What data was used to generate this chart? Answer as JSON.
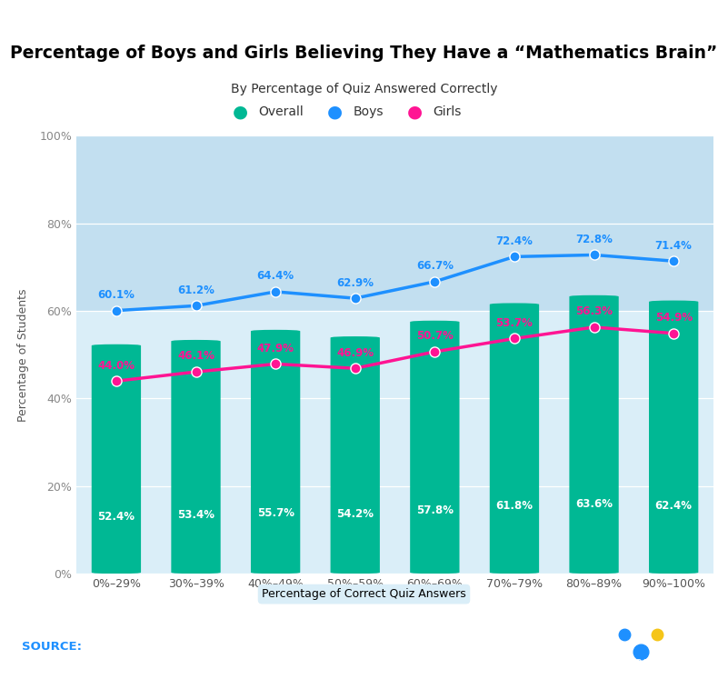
{
  "title": "Percentage of Boys and Girls Believing They Have a “Mathematics Brain”",
  "subtitle": "By Percentage of Quiz Answered Correctly",
  "xlabel": "Percentage of Correct Quiz Answers",
  "ylabel": "Percentage of Students",
  "categories": [
    "0%–29%",
    "30%–39%",
    "40%–49%",
    "50%–59%",
    "60%–69%",
    "70%–79%",
    "80%–89%",
    "90%–100%"
  ],
  "overall": [
    52.4,
    53.4,
    55.7,
    54.2,
    57.8,
    61.8,
    63.6,
    62.4
  ],
  "boys": [
    60.1,
    61.2,
    64.4,
    62.9,
    66.7,
    72.4,
    72.8,
    71.4
  ],
  "girls": [
    44.0,
    46.1,
    47.9,
    46.9,
    50.7,
    53.7,
    56.3,
    54.9
  ],
  "bar_color": "#00b894",
  "boys_color": "#1e90ff",
  "girls_color": "#ff1493",
  "overall_label_color": "#ffffff",
  "background_color": "#ffffff",
  "plot_bg_color": "#daeef8",
  "plot_bg_top_color": "#c2dff0",
  "footer_bg_color": "#0d2137",
  "footer_text_color": "#ffffff",
  "source_label_color": "#1e90ff",
  "title_underline_color": "#1e90ff",
  "xlabel_bg_color": "#daeef8",
  "ylim": [
    0,
    100
  ],
  "yticks": [
    0,
    20,
    40,
    60,
    80,
    100
  ],
  "legend_items": [
    "Overall",
    "Boys",
    "Girls"
  ],
  "legend_colors": [
    "#00b894",
    "#1e90ff",
    "#ff1493"
  ]
}
